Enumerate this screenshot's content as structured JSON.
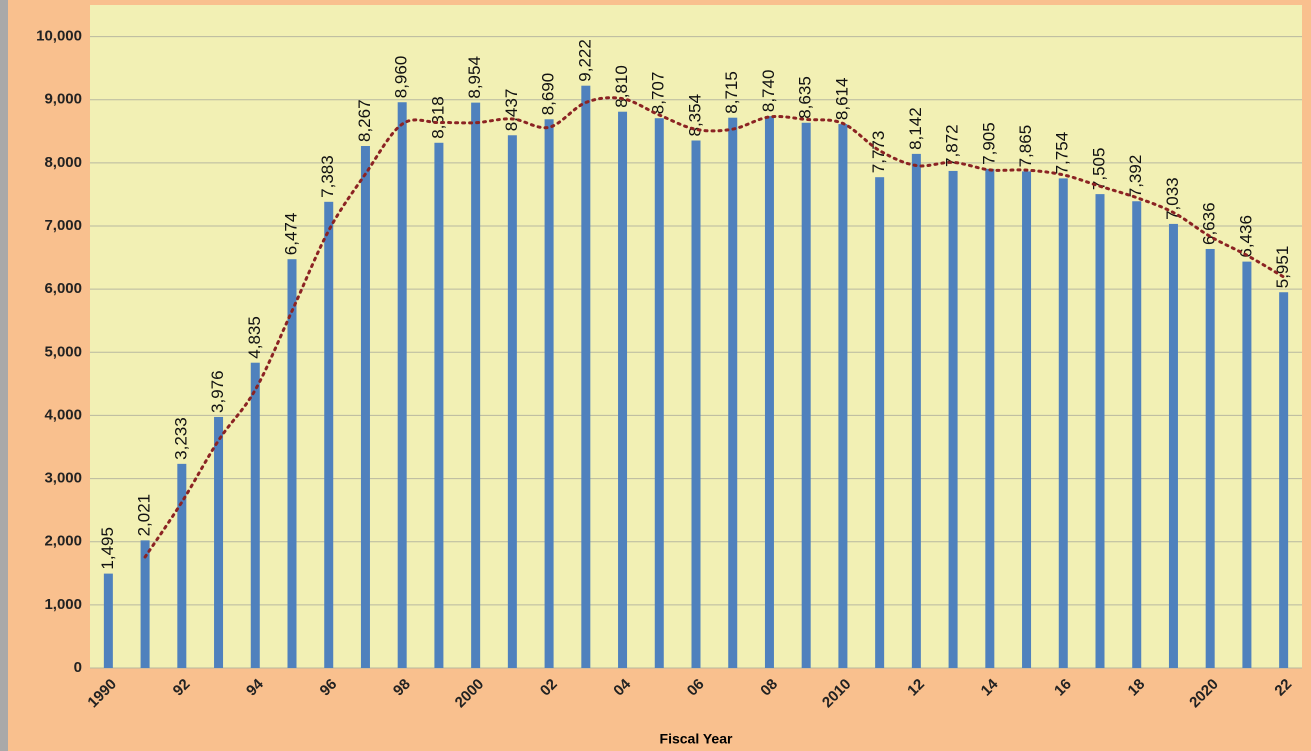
{
  "chart_data": {
    "type": "bar",
    "x_label": "Fiscal Year",
    "categories": [
      "1990",
      null,
      "92",
      null,
      "94",
      null,
      "96",
      null,
      "98",
      null,
      "2000",
      null,
      "02",
      null,
      "04",
      null,
      "06",
      null,
      "08",
      null,
      "2010",
      null,
      "12",
      null,
      "14",
      null,
      "16",
      null,
      "18",
      null,
      "2020",
      null,
      "22"
    ],
    "values": [
      1495,
      2021,
      3233,
      3976,
      4835,
      6474,
      7383,
      8267,
      8960,
      8318,
      8954,
      8437,
      8690,
      9222,
      8810,
      8707,
      8354,
      8715,
      8740,
      8635,
      8614,
      7773,
      8142,
      7872,
      7905,
      7865,
      7754,
      7505,
      7392,
      7033,
      6636,
      6436,
      5951
    ],
    "value_labels": [
      "1,495",
      "2,021",
      "3,233",
      "3,976",
      "4,835",
      "6,474",
      "7,383",
      "8,267",
      "8,960",
      "8,318",
      "8,954",
      "8,437",
      "8,690",
      "9,222",
      "8,810",
      "8,707",
      "8,354",
      "8,715",
      "8,740",
      "8,635",
      "8,614",
      "7,773",
      "8,142",
      "7,872",
      "7,905",
      "7,865",
      "7,754",
      "7,505",
      "7,392",
      "7,033",
      "6,636",
      "6,436",
      "5,951"
    ],
    "color": "#4f81bd",
    "ylim": [
      0,
      10500
    ],
    "yticks": [
      0,
      {
        "value": 1000,
        "label": "1,000"
      },
      {
        "value": 2000,
        "label": "2,000"
      },
      {
        "value": 3000,
        "label": "3,000"
      },
      {
        "value": 4000,
        "label": "4,000"
      },
      {
        "value": 5000,
        "label": "5,000"
      },
      {
        "value": 6000,
        "label": "6,000"
      },
      {
        "value": 7000,
        "label": "7,000"
      },
      {
        "value": 8000,
        "label": "8,000"
      },
      {
        "value": 9000,
        "label": "9,000"
      },
      {
        "value": 10000,
        "label": "10,000"
      }
    ],
    "grid": true,
    "trendline": {
      "type": "moving_average",
      "period": 2,
      "color": "#8b2323"
    }
  }
}
